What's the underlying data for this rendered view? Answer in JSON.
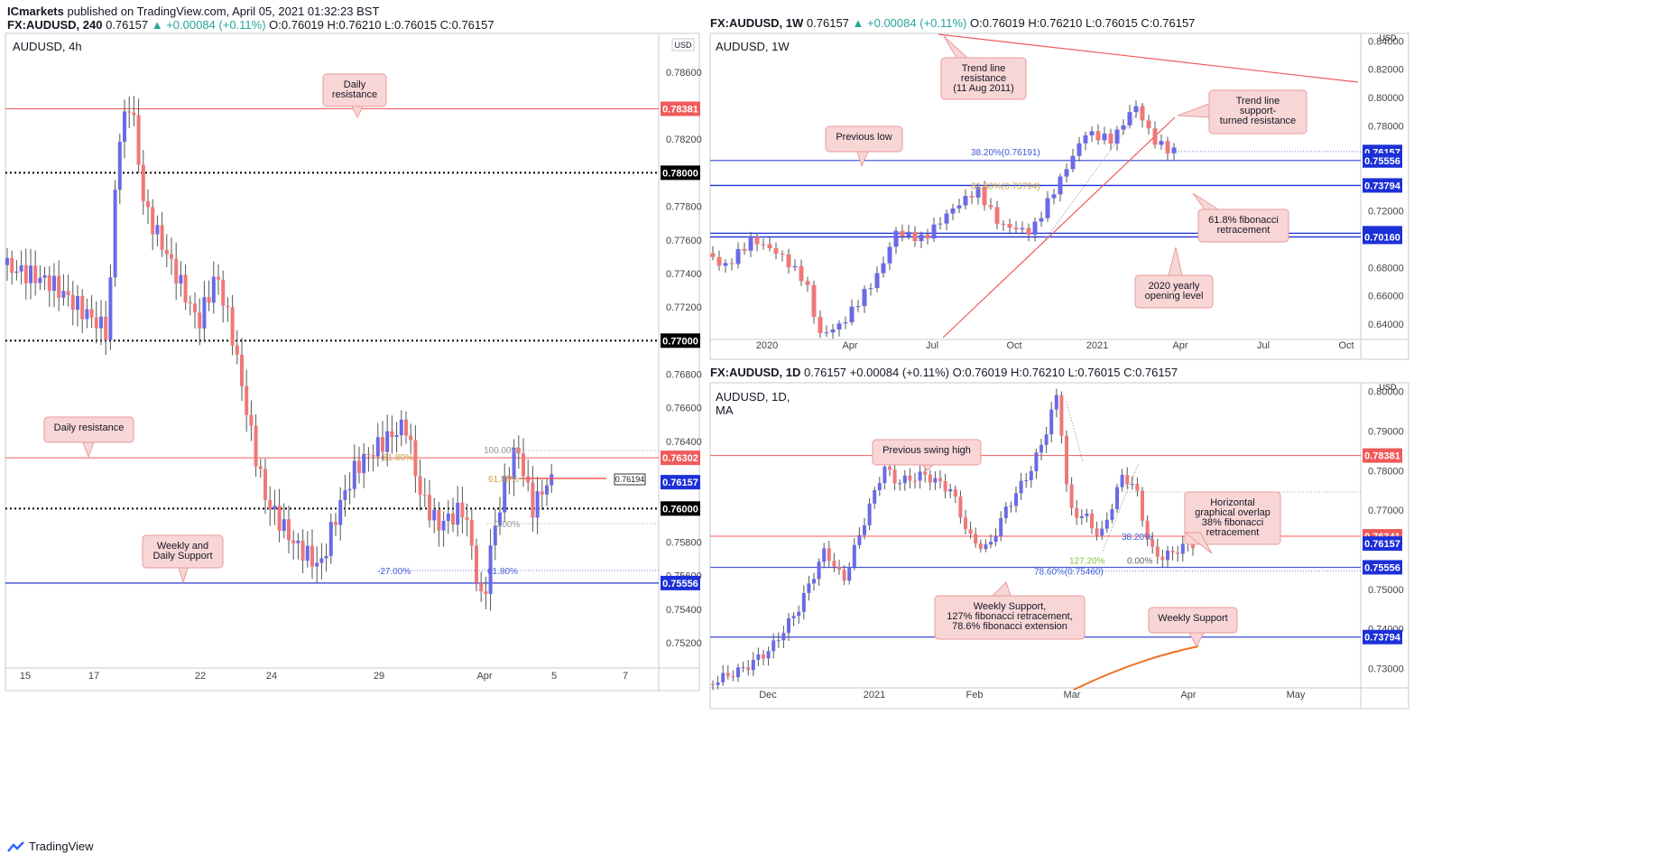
{
  "header": {
    "publisher": "ICmarkets",
    "published_text": " published on TradingView.com, April 05, 2021 01:32:23 BST"
  },
  "footer": {
    "brand": "TradingView"
  },
  "colors": {
    "up": "#6a6ae8",
    "down": "#f07878",
    "resistance": "#f05a5a",
    "support": "#4a5ad8",
    "callout_bg": "#f9d6d6",
    "callout_border": "#e89a9a"
  },
  "panels": {
    "left": {
      "quote": {
        "symbol": "FX:AUDUSD, 240",
        "close": "0.76157",
        "change": "▲ +0.00084 (+0.11%)",
        "o": "O:0.76019",
        "h": "H:0.76210",
        "l": "L:0.76015",
        "c": "C:0.76157"
      },
      "title": "AUDUSD, 4h",
      "currency": "USD"
    },
    "weekly": {
      "quote": {
        "symbol": "FX:AUDUSD, 1W",
        "close": "0.76157",
        "change": "▲ +0.00084 (+0.11%)",
        "o": "O:0.76019",
        "h": "H:0.76210",
        "l": "L:0.76015",
        "c": "C:0.76157"
      },
      "title": "AUDUSD, 1W",
      "currency": "USD"
    },
    "daily": {
      "quote": {
        "symbol": "FX:AUDUSD, 1D",
        "close": "0.76157",
        "change": "+0.00084 (+0.11%)",
        "o": "O:0.76019",
        "h": "H:0.76210",
        "l": "L:0.76015",
        "c": "C:0.76157"
      },
      "title": "AUDUSD, 1D,",
      "subtitle": "MA",
      "currency": "USD"
    }
  },
  "chart_data": [
    {
      "type": "candlestick",
      "title": "AUDUSD, 4h",
      "ylim": [
        0.7505,
        0.7883
      ],
      "y_ticks": [
        "0.78600",
        "0.78200",
        "0.77800",
        "0.77600",
        "0.77400",
        "0.77200",
        "0.76800",
        "0.76600",
        "0.76400",
        "0.75800",
        "0.75600",
        "0.75400",
        "0.75200"
      ],
      "x_ticks": [
        "15",
        "17",
        "22",
        "24",
        "29",
        "Apr",
        "5",
        "7"
      ],
      "price_tags": [
        {
          "value": "0.78381",
          "kind": "resistance"
        },
        {
          "value": "0.78000",
          "kind": "black"
        },
        {
          "value": "0.77000",
          "kind": "black"
        },
        {
          "value": "0.76302",
          "kind": "resistance"
        },
        {
          "value": "0.76157",
          "kind": "support"
        },
        {
          "value": "0.76000",
          "kind": "black"
        },
        {
          "value": "0.75556",
          "kind": "support"
        }
      ],
      "price_box": "0.76194",
      "fib_labels": [
        "100.00%",
        "61.80%",
        "61.80%",
        "0.00%",
        "-27.00%",
        "61.80%"
      ],
      "annotations": [
        "Daily\nresistance",
        "Daily resistance",
        "Weekly and\nDaily Support"
      ],
      "levels": {
        "daily_resistance_1": 0.78381,
        "round_1": 0.78,
        "round_2": 0.77,
        "daily_resistance_2": 0.76302,
        "round_3": 0.76,
        "support": 0.75556
      }
    },
    {
      "type": "candlestick",
      "title": "AUDUSD, 1W",
      "ylim": [
        0.6292,
        0.8453
      ],
      "y_ticks": [
        "0.84000",
        "0.82000",
        "0.80000",
        "0.78000",
        "0.72000",
        "0.68000",
        "0.66000",
        "0.64000"
      ],
      "x_ticks": [
        "2020",
        "Apr",
        "Jul",
        "Oct",
        "2021",
        "Apr",
        "Jul",
        "Oct"
      ],
      "price_tags": [
        {
          "value": "0.76157",
          "kind": "support"
        },
        {
          "value": "0.75556",
          "kind": "support"
        },
        {
          "value": "0.73794",
          "kind": "support"
        },
        {
          "value": "0.70420",
          "kind": "support"
        },
        {
          "value": "0.70160",
          "kind": "support"
        }
      ],
      "fib_labels": [
        "38.20%(0.76191)",
        "61.80%(0.73794)"
      ],
      "annotations": [
        "Trend line\nresistance\n(11 Aug 2011)",
        "Trend line\nsupport-\nturned resistance",
        "Previous low",
        "61.8% fibonacci\nretracement",
        "2020 yearly\nopening level"
      ]
    },
    {
      "type": "candlestick",
      "title": "AUDUSD, 1D",
      "ylim": [
        0.7251,
        0.8022
      ],
      "y_ticks": [
        "0.80000",
        "0.79000",
        "0.78000",
        "0.77000",
        "0.75000",
        "0.74000",
        "0.73000"
      ],
      "x_ticks": [
        "Dec",
        "2021",
        "Feb",
        "Mar",
        "Apr",
        "May"
      ],
      "price_tags": [
        {
          "value": "0.78381",
          "kind": "resistance"
        },
        {
          "value": "0.76341",
          "kind": "resistance"
        },
        {
          "value": "0.76157",
          "kind": "support"
        },
        {
          "value": "0.75556",
          "kind": "support"
        },
        {
          "value": "0.73794",
          "kind": "support"
        }
      ],
      "fib_labels": [
        "38.20%",
        "0.00%",
        "127.20%",
        "78.60%(0.75460)"
      ],
      "annotations": [
        "Previous swing high",
        "Horizontal\ngraphical overlap\n38% fibonacci\nretracement",
        "Weekly Support,\n127% fibonacci retracement,\n78.6% fibonacci extension",
        "Weekly Support"
      ]
    }
  ]
}
